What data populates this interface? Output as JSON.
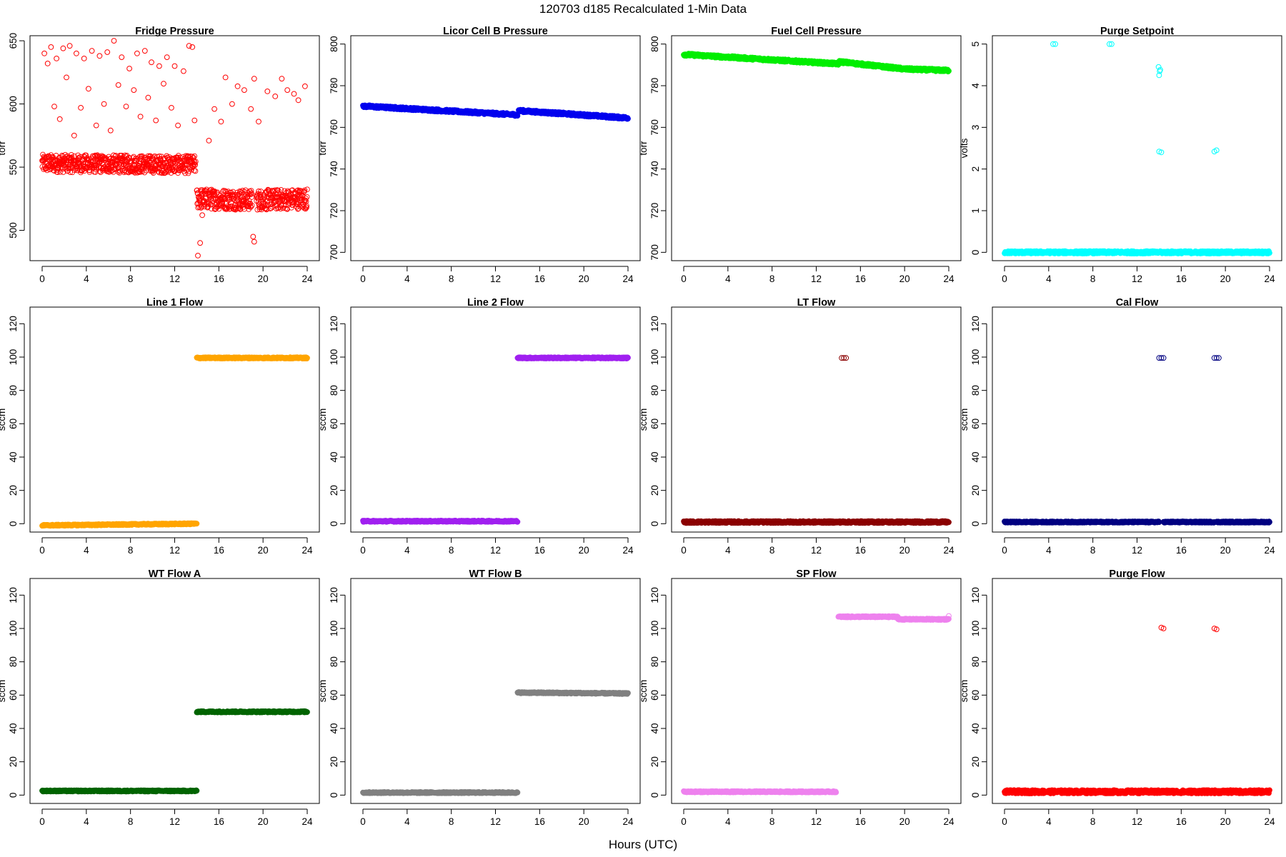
{
  "figure": {
    "title": "120703   d185   Recalculated 1-Min Data",
    "xlabel": "Hours (UTC)"
  },
  "chart_data": [
    {
      "type": "scatter",
      "title": "Fridge Pressure",
      "xlabel": "",
      "ylabel": "torr",
      "xlim": [
        0,
        24
      ],
      "ylim": [
        476,
        654
      ],
      "xticks": [
        0,
        4,
        8,
        12,
        16,
        20,
        24
      ],
      "yticks": [
        500,
        550,
        600,
        650
      ],
      "grid": false,
      "marker": "open-circle",
      "color": "#ff0000",
      "series": [
        {
          "segments": [
            {
              "x": [
                0,
                13.9
              ],
              "y": [
                553,
                552
              ],
              "band": 7
            },
            {
              "x": [
                14.0,
                19.0
              ],
              "y": [
                525,
                524
              ],
              "band": 8
            },
            {
              "x": [
                19.4,
                24.0
              ],
              "y": [
                524,
                525
              ],
              "band": 8
            }
          ],
          "points": [
            [
              0.2,
              640
            ],
            [
              0.5,
              632
            ],
            [
              0.8,
              645
            ],
            [
              1.1,
              598
            ],
            [
              1.3,
              636
            ],
            [
              1.6,
              588
            ],
            [
              1.9,
              644
            ],
            [
              2.2,
              621
            ],
            [
              2.5,
              646
            ],
            [
              2.9,
              575
            ],
            [
              3.1,
              640
            ],
            [
              3.5,
              597
            ],
            [
              3.8,
              636
            ],
            [
              4.2,
              612
            ],
            [
              4.5,
              642
            ],
            [
              4.9,
              583
            ],
            [
              5.2,
              638
            ],
            [
              5.6,
              600
            ],
            [
              5.9,
              641
            ],
            [
              6.2,
              579
            ],
            [
              6.5,
              650
            ],
            [
              6.9,
              615
            ],
            [
              7.2,
              637
            ],
            [
              7.6,
              598
            ],
            [
              7.9,
              628
            ],
            [
              8.3,
              611
            ],
            [
              8.6,
              640
            ],
            [
              8.9,
              590
            ],
            [
              9.3,
              642
            ],
            [
              9.6,
              605
            ],
            [
              9.9,
              633
            ],
            [
              10.3,
              587
            ],
            [
              10.6,
              630
            ],
            [
              11.0,
              616
            ],
            [
              11.3,
              637
            ],
            [
              11.7,
              597
            ],
            [
              12.0,
              630
            ],
            [
              12.3,
              583
            ],
            [
              12.8,
              626
            ],
            [
              13.3,
              646
            ],
            [
              13.6,
              645
            ],
            [
              13.8,
              587
            ],
            [
              14.1,
              480
            ],
            [
              14.3,
              490
            ],
            [
              14.5,
              512
            ],
            [
              15.1,
              571
            ],
            [
              15.6,
              596
            ],
            [
              16.2,
              586
            ],
            [
              16.6,
              621
            ],
            [
              17.2,
              600
            ],
            [
              17.7,
              614
            ],
            [
              18.3,
              611
            ],
            [
              18.9,
              596
            ],
            [
              19.2,
              620
            ],
            [
              19.6,
              586
            ],
            [
              20.4,
              610
            ],
            [
              21.1,
              606
            ],
            [
              21.7,
              620
            ],
            [
              22.2,
              611
            ],
            [
              22.8,
              608
            ],
            [
              23.2,
              603
            ],
            [
              23.8,
              614
            ],
            [
              19.1,
              495
            ],
            [
              19.2,
              491
            ]
          ]
        }
      ]
    },
    {
      "type": "scatter",
      "title": "Licor Cell B Pressure",
      "xlabel": "",
      "ylabel": "torr",
      "xlim": [
        0,
        24
      ],
      "ylim": [
        696,
        804
      ],
      "xticks": [
        0,
        4,
        8,
        12,
        16,
        20,
        24
      ],
      "yticks": [
        700,
        720,
        740,
        760,
        780,
        800
      ],
      "grid": false,
      "marker": "filled",
      "color": "#0000ee",
      "series": [
        {
          "segments": [
            {
              "x": [
                0,
                14.0
              ],
              "y": [
                770.2,
                766.0
              ],
              "band": 0.6
            },
            {
              "x": [
                14.1,
                24.0
              ],
              "y": [
                768.0,
                764.5
              ],
              "band": 0.6
            }
          ],
          "points": []
        }
      ]
    },
    {
      "type": "scatter",
      "title": "Fuel Cell Pressure",
      "xlabel": "",
      "ylabel": "torr",
      "xlim": [
        0,
        24
      ],
      "ylim": [
        696,
        804
      ],
      "xticks": [
        0,
        4,
        8,
        12,
        16,
        20,
        24
      ],
      "yticks": [
        700,
        720,
        740,
        760,
        780,
        800
      ],
      "grid": false,
      "marker": "filled",
      "color": "#00ee00",
      "series": [
        {
          "segments": [
            {
              "x": [
                0,
                14.0
              ],
              "y": [
                795.0,
                790.5
              ],
              "band": 0.6
            },
            {
              "x": [
                14.1,
                20.0
              ],
              "y": [
                791.5,
                788.0
              ],
              "band": 0.6
            },
            {
              "x": [
                20.0,
                24.0
              ],
              "y": [
                788.0,
                787.3
              ],
              "band": 0.6
            }
          ],
          "points": []
        }
      ]
    },
    {
      "type": "scatter",
      "title": "Purge Setpoint",
      "xlabel": "",
      "ylabel": "volts",
      "xlim": [
        0,
        24
      ],
      "ylim": [
        -0.2,
        5.2
      ],
      "xticks": [
        0,
        4,
        8,
        12,
        16,
        20,
        24
      ],
      "yticks": [
        0,
        1,
        2,
        3,
        4,
        5
      ],
      "grid": false,
      "marker": "filled",
      "color": "#00ffff",
      "series": [
        {
          "segments": [
            {
              "x": [
                0,
                13.9
              ],
              "y": [
                0,
                0
              ],
              "band": 0.03
            },
            {
              "x": [
                14.1,
                24.0
              ],
              "y": [
                0,
                0
              ],
              "band": 0.03
            }
          ],
          "points": [
            [
              4.4,
              5.0
            ],
            [
              4.6,
              5.0
            ],
            [
              9.5,
              5.0
            ],
            [
              9.7,
              5.0
            ],
            [
              13.95,
              4.45
            ],
            [
              14.05,
              4.35
            ],
            [
              14.0,
              4.25
            ],
            [
              14.1,
              4.38
            ],
            [
              14.0,
              2.42
            ],
            [
              14.2,
              2.4
            ],
            [
              19.0,
              2.42
            ],
            [
              19.2,
              2.45
            ]
          ]
        }
      ]
    },
    {
      "type": "scatter",
      "title": "Line 1 Flow",
      "xlabel": "",
      "ylabel": "sccm",
      "xlim": [
        0,
        24
      ],
      "ylim": [
        -5,
        130
      ],
      "xticks": [
        0,
        4,
        8,
        12,
        16,
        20,
        24
      ],
      "yticks": [
        0,
        20,
        40,
        60,
        80,
        100,
        120
      ],
      "grid": false,
      "marker": "filled",
      "color": "#ffa500",
      "series": [
        {
          "segments": [
            {
              "x": [
                0,
                14.0
              ],
              "y": [
                -1,
                0
              ],
              "band": 0.4
            },
            {
              "x": [
                14.0,
                24.0
              ],
              "y": [
                99.5,
                99.5
              ],
              "band": 0.4
            }
          ],
          "points": []
        }
      ]
    },
    {
      "type": "scatter",
      "title": "Line 2 Flow",
      "xlabel": "",
      "ylabel": "sccm",
      "xlim": [
        0,
        24
      ],
      "ylim": [
        -5,
        130
      ],
      "xticks": [
        0,
        4,
        8,
        12,
        16,
        20,
        24
      ],
      "yticks": [
        0,
        20,
        40,
        60,
        80,
        100,
        120
      ],
      "grid": false,
      "marker": "filled",
      "color": "#a020f0",
      "series": [
        {
          "segments": [
            {
              "x": [
                0,
                14.0
              ],
              "y": [
                1.5,
                1.5
              ],
              "band": 0.4
            },
            {
              "x": [
                14.0,
                24.0
              ],
              "y": [
                99.5,
                99.5
              ],
              "band": 0.4
            }
          ],
          "points": []
        }
      ]
    },
    {
      "type": "scatter",
      "title": "LT Flow",
      "xlabel": "",
      "ylabel": "sccm",
      "xlim": [
        0,
        24
      ],
      "ylim": [
        -5,
        130
      ],
      "xticks": [
        0,
        4,
        8,
        12,
        16,
        20,
        24
      ],
      "yticks": [
        0,
        20,
        40,
        60,
        80,
        100,
        120
      ],
      "grid": false,
      "marker": "filled",
      "color": "#8b0000",
      "series": [
        {
          "segments": [
            {
              "x": [
                0,
                14.5
              ],
              "y": [
                1,
                1
              ],
              "band": 0.6
            },
            {
              "x": [
                14.5,
                24.0
              ],
              "y": [
                1,
                1
              ],
              "band": 0.6
            }
          ],
          "points": [
            [
              14.3,
              99.5
            ],
            [
              14.5,
              99.5
            ],
            [
              14.7,
              99.5
            ]
          ]
        }
      ]
    },
    {
      "type": "scatter",
      "title": "Cal Flow",
      "xlabel": "",
      "ylabel": "sccm",
      "xlim": [
        0,
        24
      ],
      "ylim": [
        -5,
        130
      ],
      "xticks": [
        0,
        4,
        8,
        12,
        16,
        20,
        24
      ],
      "yticks": [
        0,
        20,
        40,
        60,
        80,
        100,
        120
      ],
      "grid": false,
      "marker": "filled",
      "color": "#000080",
      "series": [
        {
          "segments": [
            {
              "x": [
                0,
                14.0
              ],
              "y": [
                1,
                1
              ],
              "band": 0.4
            },
            {
              "x": [
                14.4,
                19.0
              ],
              "y": [
                1,
                1
              ],
              "band": 0.4
            },
            {
              "x": [
                19.2,
                24.0
              ],
              "y": [
                1,
                1
              ],
              "band": 0.4
            }
          ],
          "points": [
            [
              14.0,
              99.5
            ],
            [
              14.2,
              99.5
            ],
            [
              14.4,
              99.5
            ],
            [
              19.0,
              99.5
            ],
            [
              19.2,
              99.5
            ],
            [
              19.4,
              99.5
            ]
          ]
        }
      ]
    },
    {
      "type": "scatter",
      "title": "WT Flow A",
      "xlabel": "",
      "ylabel": "sccm",
      "xlim": [
        0,
        24
      ],
      "ylim": [
        -5,
        130
      ],
      "xticks": [
        0,
        4,
        8,
        12,
        16,
        20,
        24
      ],
      "yticks": [
        0,
        20,
        40,
        60,
        80,
        100,
        120
      ],
      "grid": false,
      "marker": "filled",
      "color": "#006400",
      "series": [
        {
          "segments": [
            {
              "x": [
                0,
                14.0
              ],
              "y": [
                2.5,
                2.5
              ],
              "band": 0.4
            },
            {
              "x": [
                14.0,
                24.0
              ],
              "y": [
                50,
                50
              ],
              "band": 0.4
            }
          ],
          "points": []
        }
      ]
    },
    {
      "type": "scatter",
      "title": "WT Flow B",
      "xlabel": "",
      "ylabel": "sccm",
      "xlim": [
        0,
        24
      ],
      "ylim": [
        -5,
        130
      ],
      "xticks": [
        0,
        4,
        8,
        12,
        16,
        20,
        24
      ],
      "yticks": [
        0,
        20,
        40,
        60,
        80,
        100,
        120
      ],
      "grid": false,
      "marker": "filled",
      "color": "#808080",
      "series": [
        {
          "segments": [
            {
              "x": [
                0,
                14.0
              ],
              "y": [
                1.5,
                1.5
              ],
              "band": 0.4
            },
            {
              "x": [
                14.0,
                24.0
              ],
              "y": [
                61.5,
                61.0
              ],
              "band": 0.4
            }
          ],
          "points": []
        }
      ]
    },
    {
      "type": "scatter",
      "title": "SP Flow",
      "xlabel": "",
      "ylabel": "sccm",
      "xlim": [
        0,
        24
      ],
      "ylim": [
        -5,
        130
      ],
      "xticks": [
        0,
        4,
        8,
        12,
        16,
        20,
        24
      ],
      "yticks": [
        0,
        20,
        40,
        60,
        80,
        100,
        120
      ],
      "grid": false,
      "marker": "filled",
      "color": "#ee82ee",
      "series": [
        {
          "segments": [
            {
              "x": [
                0,
                13.8
              ],
              "y": [
                2,
                2
              ],
              "band": 0.4
            },
            {
              "x": [
                14.0,
                19.4
              ],
              "y": [
                107,
                107
              ],
              "band": 0.4
            },
            {
              "x": [
                19.4,
                24.0
              ],
              "y": [
                105.5,
                105.5
              ],
              "band": 0.4
            }
          ],
          "points": [
            [
              19.4,
              106
            ],
            [
              24.0,
              107.5
            ]
          ]
        }
      ]
    },
    {
      "type": "scatter",
      "title": "Purge Flow",
      "xlabel": "",
      "ylabel": "sccm",
      "xlim": [
        0,
        24
      ],
      "ylim": [
        -5,
        130
      ],
      "xticks": [
        0,
        4,
        8,
        12,
        16,
        20,
        24
      ],
      "yticks": [
        0,
        20,
        40,
        60,
        80,
        100,
        120
      ],
      "grid": false,
      "marker": "filled",
      "color": "#ff0000",
      "series": [
        {
          "segments": [
            {
              "x": [
                0,
                24.0
              ],
              "y": [
                2,
                2
              ],
              "band": 1.0
            }
          ],
          "points": [
            [
              14.2,
              100.5
            ],
            [
              14.4,
              100
            ],
            [
              19.0,
              100
            ],
            [
              19.2,
              99.5
            ]
          ]
        }
      ]
    }
  ]
}
